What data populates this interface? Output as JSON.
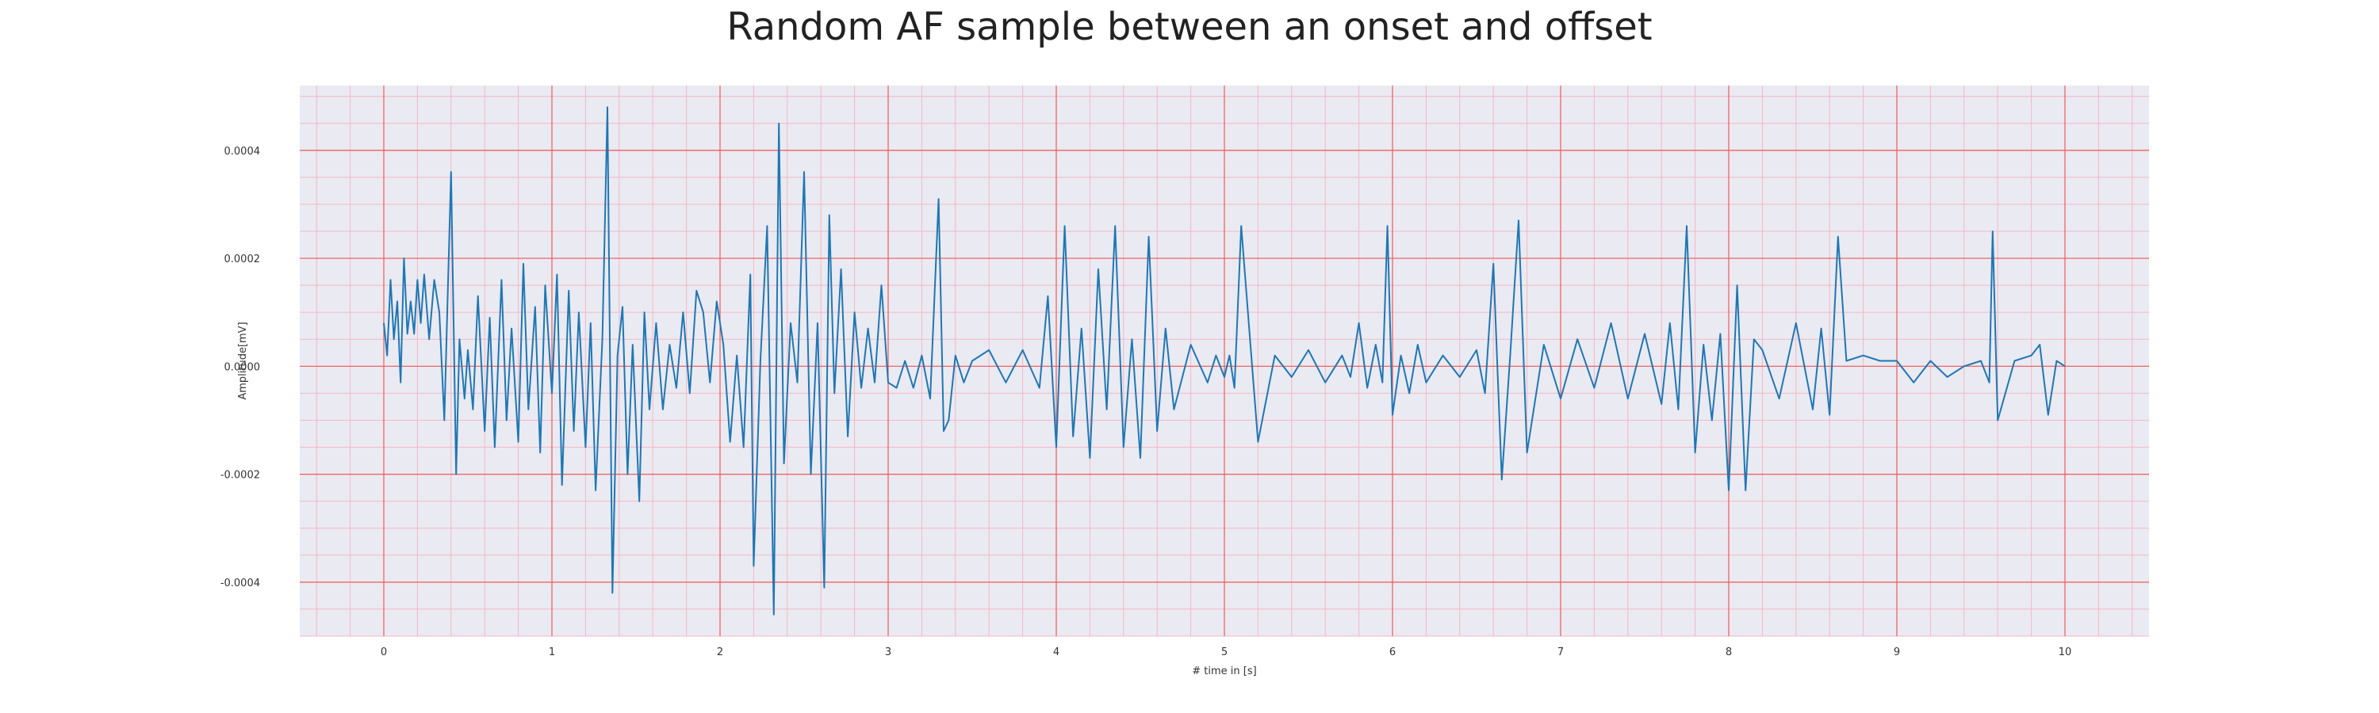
{
  "chart_data": {
    "type": "line",
    "title": "Random AF sample between an onset and offset",
    "xlabel": "# time in [s]",
    "ylabel": "Amplitude[mV]",
    "xlim": [
      -0.5,
      10.5
    ],
    "ylim": [
      -0.0005,
      0.00052
    ],
    "xticks": [
      0,
      1,
      2,
      3,
      4,
      5,
      6,
      7,
      8,
      9,
      10
    ],
    "xtick_labels": [
      "0",
      "1",
      "2",
      "3",
      "4",
      "5",
      "6",
      "7",
      "8",
      "9",
      "10"
    ],
    "yticks": [
      -0.0004,
      -0.0002,
      0.0,
      0.0002,
      0.0004
    ],
    "ytick_labels": [
      "-0.0004",
      "-0.0002",
      "0.0000",
      "0.0002",
      "0.0004"
    ],
    "grid": "major and minor",
    "colors": {
      "background": "#eaeaf2",
      "major_grid": "#ee5a5a",
      "minor_grid": "#f3b8c4",
      "line": "#1f77b4"
    },
    "series": [
      {
        "x": [
          0,
          0.02,
          0.04,
          0.06,
          0.08,
          0.1,
          0.12,
          0.14,
          0.16,
          0.18,
          0.2,
          0.22,
          0.24,
          0.27,
          0.3,
          0.33,
          0.36,
          0.4,
          0.43,
          0.45,
          0.48,
          0.5,
          0.53,
          0.56,
          0.6,
          0.63,
          0.66,
          0.7,
          0.73,
          0.76,
          0.8,
          0.83,
          0.86,
          0.9,
          0.93,
          0.96,
          1.0,
          1.03,
          1.06,
          1.1,
          1.13,
          1.16,
          1.2,
          1.23,
          1.26,
          1.3,
          1.33,
          1.36,
          1.39,
          1.42,
          1.45,
          1.48,
          1.52,
          1.55,
          1.58,
          1.62,
          1.66,
          1.7,
          1.74,
          1.78,
          1.82,
          1.86,
          1.9,
          1.94,
          1.98,
          2.02,
          2.06,
          2.1,
          2.14,
          2.18,
          2.2,
          2.24,
          2.28,
          2.32,
          2.35,
          2.38,
          2.42,
          2.46,
          2.5,
          2.54,
          2.58,
          2.62,
          2.65,
          2.68,
          2.72,
          2.76,
          2.8,
          2.84,
          2.88,
          2.92,
          2.96,
          3.0,
          3.05,
          3.1,
          3.15,
          3.2,
          3.25,
          3.3,
          3.33,
          3.36,
          3.4,
          3.45,
          3.5,
          3.6,
          3.7,
          3.8,
          3.9,
          3.95,
          4.0,
          4.05,
          4.1,
          4.15,
          4.2,
          4.25,
          4.3,
          4.35,
          4.4,
          4.45,
          4.5,
          4.55,
          4.6,
          4.65,
          4.7,
          4.8,
          4.9,
          4.95,
          5.0,
          5.03,
          5.06,
          5.1,
          5.2,
          5.3,
          5.4,
          5.5,
          5.6,
          5.7,
          5.75,
          5.8,
          5.85,
          5.9,
          5.94,
          5.97,
          6.0,
          6.05,
          6.1,
          6.15,
          6.2,
          6.3,
          6.4,
          6.5,
          6.55,
          6.6,
          6.65,
          6.7,
          6.75,
          6.8,
          6.9,
          7.0,
          7.1,
          7.2,
          7.3,
          7.4,
          7.5,
          7.6,
          7.65,
          7.7,
          7.75,
          7.8,
          7.85,
          7.9,
          7.95,
          8.0,
          8.05,
          8.1,
          8.15,
          8.2,
          8.3,
          8.4,
          8.5,
          8.55,
          8.6,
          8.65,
          8.7,
          8.8,
          8.9,
          9.0,
          9.1,
          9.2,
          9.3,
          9.4,
          9.5,
          9.55,
          9.57,
          9.6,
          9.7,
          9.8,
          9.85,
          9.9,
          9.95,
          10.0
        ],
        "y": [
          8e-05,
          2e-05,
          0.00016,
          5e-05,
          0.00012,
          -3e-05,
          0.0002,
          6e-05,
          0.00012,
          6e-05,
          0.00016,
          8e-05,
          0.00017,
          5e-05,
          0.00016,
          0.0001,
          -0.0001,
          0.00036,
          -0.0002,
          5e-05,
          -6e-05,
          3e-05,
          -8e-05,
          0.00013,
          -0.00012,
          9e-05,
          -0.00015,
          0.00016,
          -0.0001,
          7e-05,
          -0.00014,
          0.00019,
          -8e-05,
          0.00011,
          -0.00016,
          0.00015,
          -5e-05,
          0.00017,
          -0.00022,
          0.00014,
          -0.00012,
          0.0001,
          -0.00015,
          8e-05,
          -0.00023,
          5e-05,
          0.00048,
          -0.00042,
          2e-05,
          0.00011,
          -0.0002,
          4e-05,
          -0.00025,
          0.0001,
          -8e-05,
          8e-05,
          -8e-05,
          4e-05,
          -4e-05,
          0.0001,
          -5e-05,
          0.00014,
          0.0001,
          -3e-05,
          0.00012,
          4e-05,
          -0.00014,
          2e-05,
          -0.00015,
          0.00017,
          -0.00037,
          1e-05,
          0.00026,
          -0.00046,
          0.00045,
          -0.00018,
          8e-05,
          -3e-05,
          0.00036,
          -0.0002,
          8e-05,
          -0.00041,
          0.00028,
          -5e-05,
          0.00018,
          -0.00013,
          0.0001,
          -4e-05,
          7e-05,
          -3e-05,
          0.00015,
          -3e-05,
          -4e-05,
          1e-05,
          -4e-05,
          2e-05,
          -6e-05,
          0.00031,
          -0.00012,
          -0.0001,
          2e-05,
          -3e-05,
          1e-05,
          3e-05,
          -3e-05,
          3e-05,
          -4e-05,
          0.00013,
          -0.00015,
          0.00026,
          -0.00013,
          7e-05,
          -0.00017,
          0.00018,
          -8e-05,
          0.00026,
          -0.00015,
          5e-05,
          -0.00017,
          0.00024,
          -0.00012,
          7e-05,
          -8e-05,
          4e-05,
          -3e-05,
          2e-05,
          -2e-05,
          2e-05,
          -4e-05,
          0.00026,
          -0.00014,
          2e-05,
          -2e-05,
          3e-05,
          -3e-05,
          2e-05,
          -2e-05,
          8e-05,
          -4e-05,
          4e-05,
          -3e-05,
          0.00026,
          -9e-05,
          2e-05,
          -5e-05,
          4e-05,
          -3e-05,
          2e-05,
          -2e-05,
          3e-05,
          -5e-05,
          0.00019,
          -0.00021,
          2e-05,
          0.00027,
          -0.00016,
          4e-05,
          -6e-05,
          5e-05,
          -4e-05,
          8e-05,
          -6e-05,
          6e-05,
          -7e-05,
          8e-05,
          -8e-05,
          0.00026,
          -0.00016,
          4e-05,
          -0.0001,
          6e-05,
          -0.00023,
          0.00015,
          -0.00023,
          5e-05,
          3e-05,
          -6e-05,
          8e-05,
          -8e-05,
          7e-05,
          -9e-05,
          0.00024,
          1e-05,
          2e-05,
          1e-05,
          1e-05,
          -3e-05,
          1e-05,
          -2e-05,
          0.0,
          1e-05,
          -3e-05,
          0.00025,
          -0.0001,
          1e-05,
          2e-05,
          4e-05,
          -9e-05,
          1e-05,
          0.0
        ]
      }
    ]
  }
}
